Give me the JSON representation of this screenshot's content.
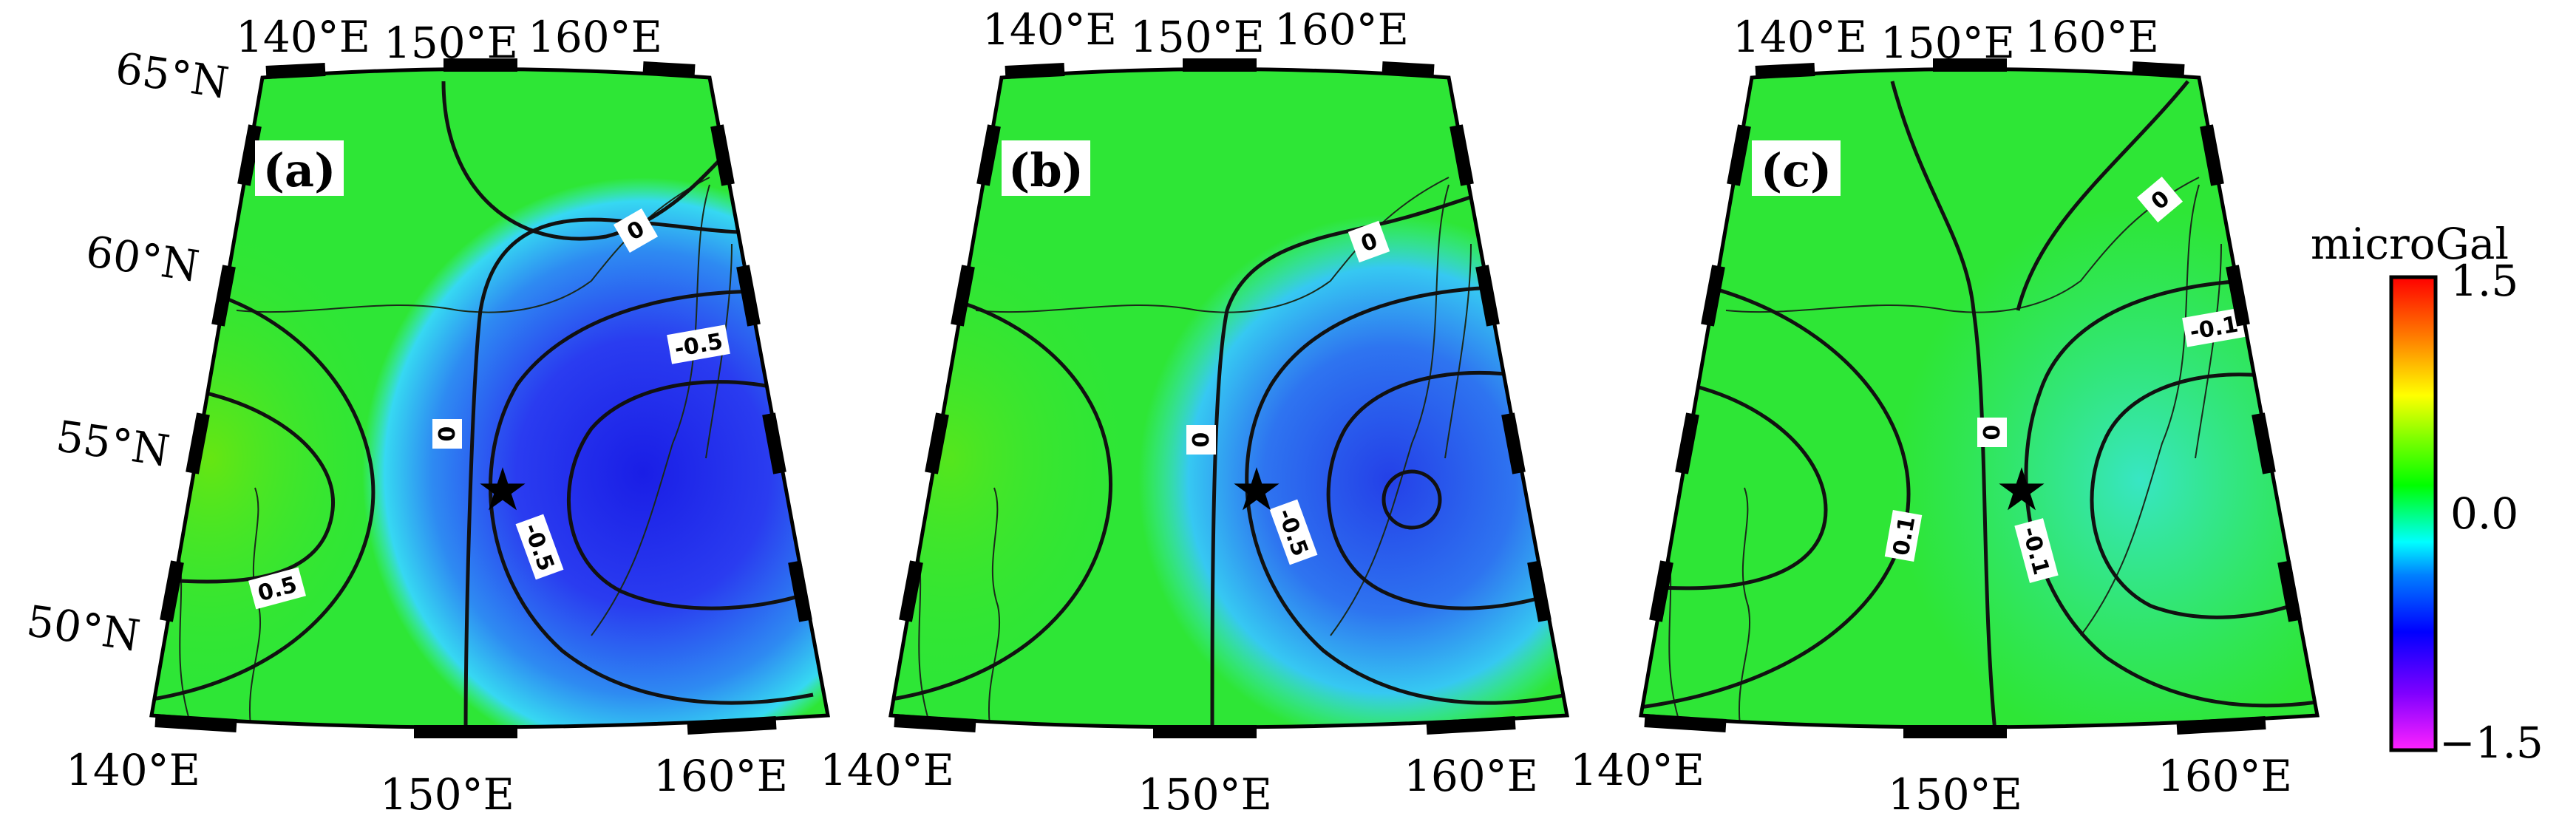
{
  "figure": {
    "panels": [
      {
        "label": "(a)",
        "contour_labels": [
          "0",
          "0",
          "-0.5",
          "-0.5",
          "0.5"
        ],
        "min_value": -0.9
      },
      {
        "label": "(b)",
        "contour_labels": [
          "0",
          "0",
          "-0.5"
        ],
        "min_value": -0.65
      },
      {
        "label": "(c)",
        "contour_labels": [
          "0",
          "0",
          "-0.1",
          "0.1",
          "-0.1"
        ],
        "min_value": -0.15
      }
    ],
    "longitude_ticks": [
      "140°E",
      "150°E",
      "160°E"
    ],
    "latitude_ticks": [
      "65°N",
      "60°N",
      "55°N",
      "50°N"
    ],
    "epicenter_marker": "star-icon",
    "colorbar": {
      "unit": "microGal",
      "max_label": "1.5",
      "mid_label": "0.0",
      "min_label": "−1.5",
      "range": [
        -1.5,
        1.5
      ],
      "colors": [
        "#ff22ff",
        "#7f00ff",
        "#0000ff",
        "#0080ff",
        "#00ffff",
        "#00ff80",
        "#00ff00",
        "#80ff00",
        "#ffff00",
        "#ff8000",
        "#ff0000"
      ]
    }
  }
}
